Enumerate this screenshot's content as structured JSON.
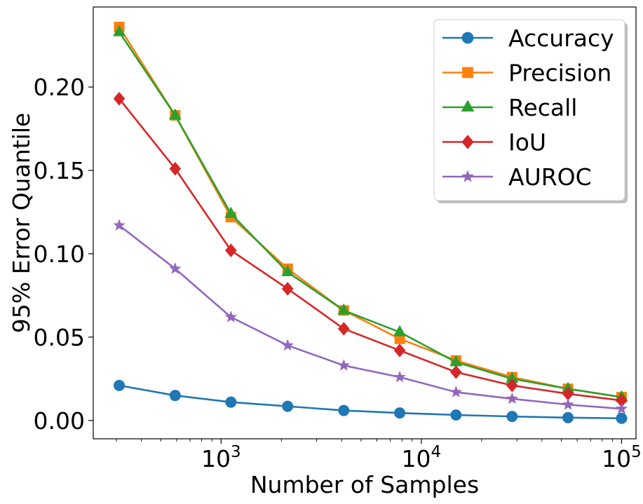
{
  "chart_data": {
    "type": "line",
    "title": "",
    "xlabel": "Number of Samples",
    "ylabel": "95% Error Quantile",
    "xscale": "log",
    "xlim": [
      230,
      118000
    ],
    "ylim": [
      -0.011,
      0.248
    ],
    "x": [
      310,
      590,
      1120,
      2150,
      4100,
      7800,
      14900,
      28400,
      54000,
      100000
    ],
    "xticks": [
      {
        "value": 1000,
        "base": "10",
        "exp": "3"
      },
      {
        "value": 10000,
        "base": "10",
        "exp": "4"
      },
      {
        "value": 100000,
        "base": "10",
        "exp": "5"
      }
    ],
    "yticks": [
      {
        "value": 0.0,
        "label": "0.00"
      },
      {
        "value": 0.05,
        "label": "0.05"
      },
      {
        "value": 0.1,
        "label": "0.10"
      },
      {
        "value": 0.15,
        "label": "0.15"
      },
      {
        "value": 0.2,
        "label": "0.20"
      }
    ],
    "legend_position": "top-right",
    "series": [
      {
        "name": "Accuracy",
        "color": "#1f77b4",
        "marker": "circle",
        "values": [
          0.021,
          0.015,
          0.011,
          0.0085,
          0.006,
          0.0045,
          0.0033,
          0.0024,
          0.0017,
          0.0013
        ]
      },
      {
        "name": "Precision",
        "color": "#ff7f0e",
        "marker": "square",
        "values": [
          0.236,
          0.183,
          0.122,
          0.091,
          0.066,
          0.049,
          0.036,
          0.026,
          0.019,
          0.014
        ]
      },
      {
        "name": "Recall",
        "color": "#2ca02c",
        "marker": "triangle",
        "values": [
          0.233,
          0.183,
          0.124,
          0.089,
          0.066,
          0.053,
          0.035,
          0.025,
          0.019,
          0.014
        ]
      },
      {
        "name": "IoU",
        "color": "#d62728",
        "marker": "diamond",
        "values": [
          0.193,
          0.151,
          0.102,
          0.079,
          0.055,
          0.042,
          0.029,
          0.021,
          0.016,
          0.012
        ]
      },
      {
        "name": "AUROC",
        "color": "#9467bd",
        "marker": "star",
        "values": [
          0.117,
          0.091,
          0.062,
          0.045,
          0.033,
          0.026,
          0.017,
          0.013,
          0.0095,
          0.007
        ]
      }
    ]
  }
}
